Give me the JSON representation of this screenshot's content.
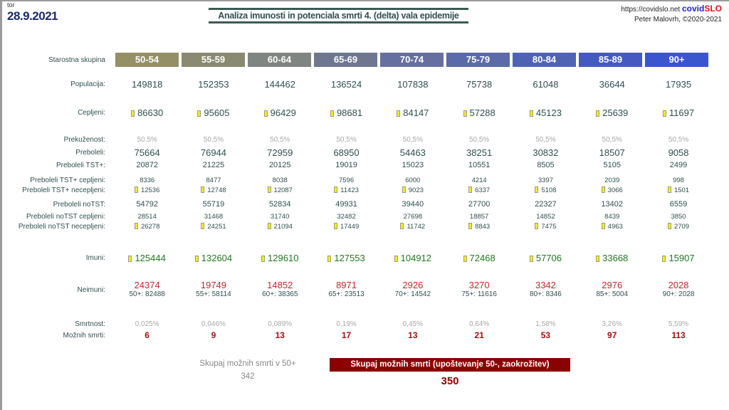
{
  "header": {
    "day": "tor",
    "date": "28.9.2021",
    "title": "Analiza imunosti in potenciala smrti 4. (delta) vala epidemije",
    "url": "https://covidslo.net",
    "brand_a": "covid",
    "brand_b": "SLO",
    "author": "Peter Malovrh, ©2020-2021"
  },
  "age_label": "Starostna skupina",
  "age_groups": [
    "50-54",
    "55-59",
    "60-64",
    "65-69",
    "70-74",
    "75-79",
    "80-84",
    "85-89",
    "90+"
  ],
  "age_colors": [
    "#958f66",
    "#8a8a72",
    "#7f8580",
    "#6f7790",
    "#6670a0",
    "#5b6aa8",
    "#4f63b5",
    "#4459c2",
    "#3b55cf"
  ],
  "rows": [
    {
      "label": "Populacija:",
      "style": "big",
      "marker": false,
      "values": [
        "149818",
        "152353",
        "144462",
        "136524",
        "107838",
        "75738",
        "61048",
        "36644",
        "17935"
      ]
    },
    {
      "label": "Cepljeni:",
      "style": "big",
      "marker": true,
      "values": [
        "86630",
        "95605",
        "96429",
        "98681",
        "84147",
        "57288",
        "45123",
        "25639",
        "11697"
      ]
    },
    {
      "label": "Prekuženost:",
      "style": "pct",
      "marker": false,
      "values": [
        "50,5%",
        "50,5%",
        "50,5%",
        "50,5%",
        "50,5%",
        "50,5%",
        "50,5%",
        "50,5%",
        "50,5%"
      ]
    },
    {
      "label": "Preboleli:",
      "style": "big",
      "marker": false,
      "values": [
        "75664",
        "76944",
        "72959",
        "68950",
        "54463",
        "38251",
        "30832",
        "18507",
        "9058"
      ]
    },
    {
      "label": "Preboleli TST+:",
      "style": "med",
      "marker": false,
      "values": [
        "20872",
        "21225",
        "20125",
        "19019",
        "15023",
        "10551",
        "8505",
        "5105",
        "2499"
      ]
    },
    {
      "label": "Preboleli TST+ cepljeni:",
      "style": "sm",
      "marker": false,
      "values": [
        "8336",
        "8477",
        "8038",
        "7596",
        "6000",
        "4214",
        "3397",
        "2039",
        "998"
      ]
    },
    {
      "label": "Preboleli TST+ necepljeni:",
      "style": "sm",
      "marker": true,
      "values": [
        "12536",
        "12748",
        "12087",
        "11423",
        "9023",
        "6337",
        "5108",
        "3066",
        "1501"
      ]
    },
    {
      "label": "Preboleli noTST:",
      "style": "med",
      "marker": false,
      "values": [
        "54792",
        "55719",
        "52834",
        "49931",
        "39440",
        "27700",
        "22327",
        "13402",
        "6559"
      ]
    },
    {
      "label": "Preboleli noTST cepljeni:",
      "style": "sm",
      "marker": false,
      "values": [
        "28514",
        "31468",
        "31740",
        "32482",
        "27698",
        "18857",
        "14852",
        "8439",
        "3850"
      ]
    },
    {
      "label": "Preboleli noTST necepljeni:",
      "style": "sm",
      "marker": true,
      "values": [
        "26278",
        "24251",
        "21094",
        "17449",
        "11742",
        "8843",
        "7475",
        "4963",
        "2709"
      ]
    },
    {
      "label": "Imuni:",
      "style": "imu",
      "marker": true,
      "values": [
        "125444",
        "132604",
        "129610",
        "127553",
        "104912",
        "72468",
        "57706",
        "33668",
        "15907"
      ]
    },
    {
      "label": "Neimuni:",
      "style": "neim",
      "marker": false,
      "values": [
        "24374",
        "19749",
        "14852",
        "8971",
        "2926",
        "3270",
        "3342",
        "2976",
        "2028"
      ],
      "sub": [
        "50+: 82488",
        "55+: 58114",
        "60+: 38365",
        "65+: 23513",
        "70+: 14542",
        "75+: 11616",
        "80+: 8346",
        "85+: 5004",
        "90+: 2028"
      ]
    },
    {
      "label": "Smrtnost:",
      "style": "pct",
      "marker": false,
      "values": [
        "0,025%",
        "0,046%",
        "0,089%",
        "0,19%",
        "0,45%",
        "0,64%",
        "1,58%",
        "3,26%",
        "5,59%"
      ]
    },
    {
      "label": "Možnih smrti:",
      "style": "death",
      "marker": false,
      "values": [
        "6",
        "9",
        "13",
        "17",
        "13",
        "21",
        "53",
        "97",
        "113"
      ]
    }
  ],
  "totals": {
    "label_50plus": "Skupaj možnih smrti v 50+",
    "value_50plus": "342",
    "label_total": "Skupaj možnih smrti (upoštevanje 50-, zaokrožitev)",
    "value_total": "350"
  }
}
